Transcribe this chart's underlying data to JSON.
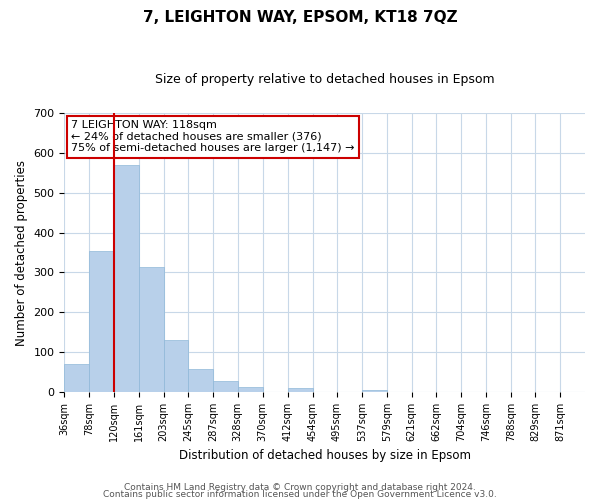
{
  "title": "7, LEIGHTON WAY, EPSOM, KT18 7QZ",
  "subtitle": "Size of property relative to detached houses in Epsom",
  "xlabel": "Distribution of detached houses by size in Epsom",
  "ylabel": "Number of detached properties",
  "bar_left_edges": [
    36,
    78,
    120,
    161,
    203,
    245,
    287,
    328,
    370,
    412,
    454,
    495,
    537,
    579,
    621,
    662,
    704,
    746,
    788,
    829
  ],
  "bar_heights": [
    70,
    354,
    570,
    315,
    130,
    58,
    27,
    13,
    0,
    10,
    0,
    0,
    4,
    0,
    0,
    0,
    0,
    0,
    0,
    0
  ],
  "bar_widths": [
    42,
    42,
    41,
    42,
    42,
    42,
    41,
    42,
    42,
    42,
    41,
    42,
    42,
    42,
    41,
    42,
    42,
    42,
    41,
    42
  ],
  "tick_labels": [
    "36sqm",
    "78sqm",
    "120sqm",
    "161sqm",
    "203sqm",
    "245sqm",
    "287sqm",
    "328sqm",
    "370sqm",
    "412sqm",
    "454sqm",
    "495sqm",
    "537sqm",
    "579sqm",
    "621sqm",
    "662sqm",
    "704sqm",
    "746sqm",
    "788sqm",
    "829sqm",
    "871sqm"
  ],
  "tick_positions": [
    36,
    78,
    120,
    161,
    203,
    245,
    287,
    328,
    370,
    412,
    454,
    495,
    537,
    579,
    621,
    662,
    704,
    746,
    788,
    829,
    871
  ],
  "bar_color": "#b8d0ea",
  "bar_edge_color": "#8fb8d8",
  "marker_x": 120,
  "marker_color": "#cc0000",
  "ylim": [
    0,
    700
  ],
  "yticks": [
    0,
    100,
    200,
    300,
    400,
    500,
    600,
    700
  ],
  "annotation_line1": "7 LEIGHTON WAY: 118sqm",
  "annotation_line2": "← 24% of detached houses are smaller (376)",
  "annotation_line3": "75% of semi-detached houses are larger (1,147) →",
  "annotation_box_color": "#ffffff",
  "annotation_box_edge": "#cc0000",
  "footer_line1": "Contains HM Land Registry data © Crown copyright and database right 2024.",
  "footer_line2": "Contains public sector information licensed under the Open Government Licence v3.0.",
  "background_color": "#ffffff",
  "grid_color": "#c8d8e8",
  "xlim_left": 36,
  "xlim_right": 913
}
